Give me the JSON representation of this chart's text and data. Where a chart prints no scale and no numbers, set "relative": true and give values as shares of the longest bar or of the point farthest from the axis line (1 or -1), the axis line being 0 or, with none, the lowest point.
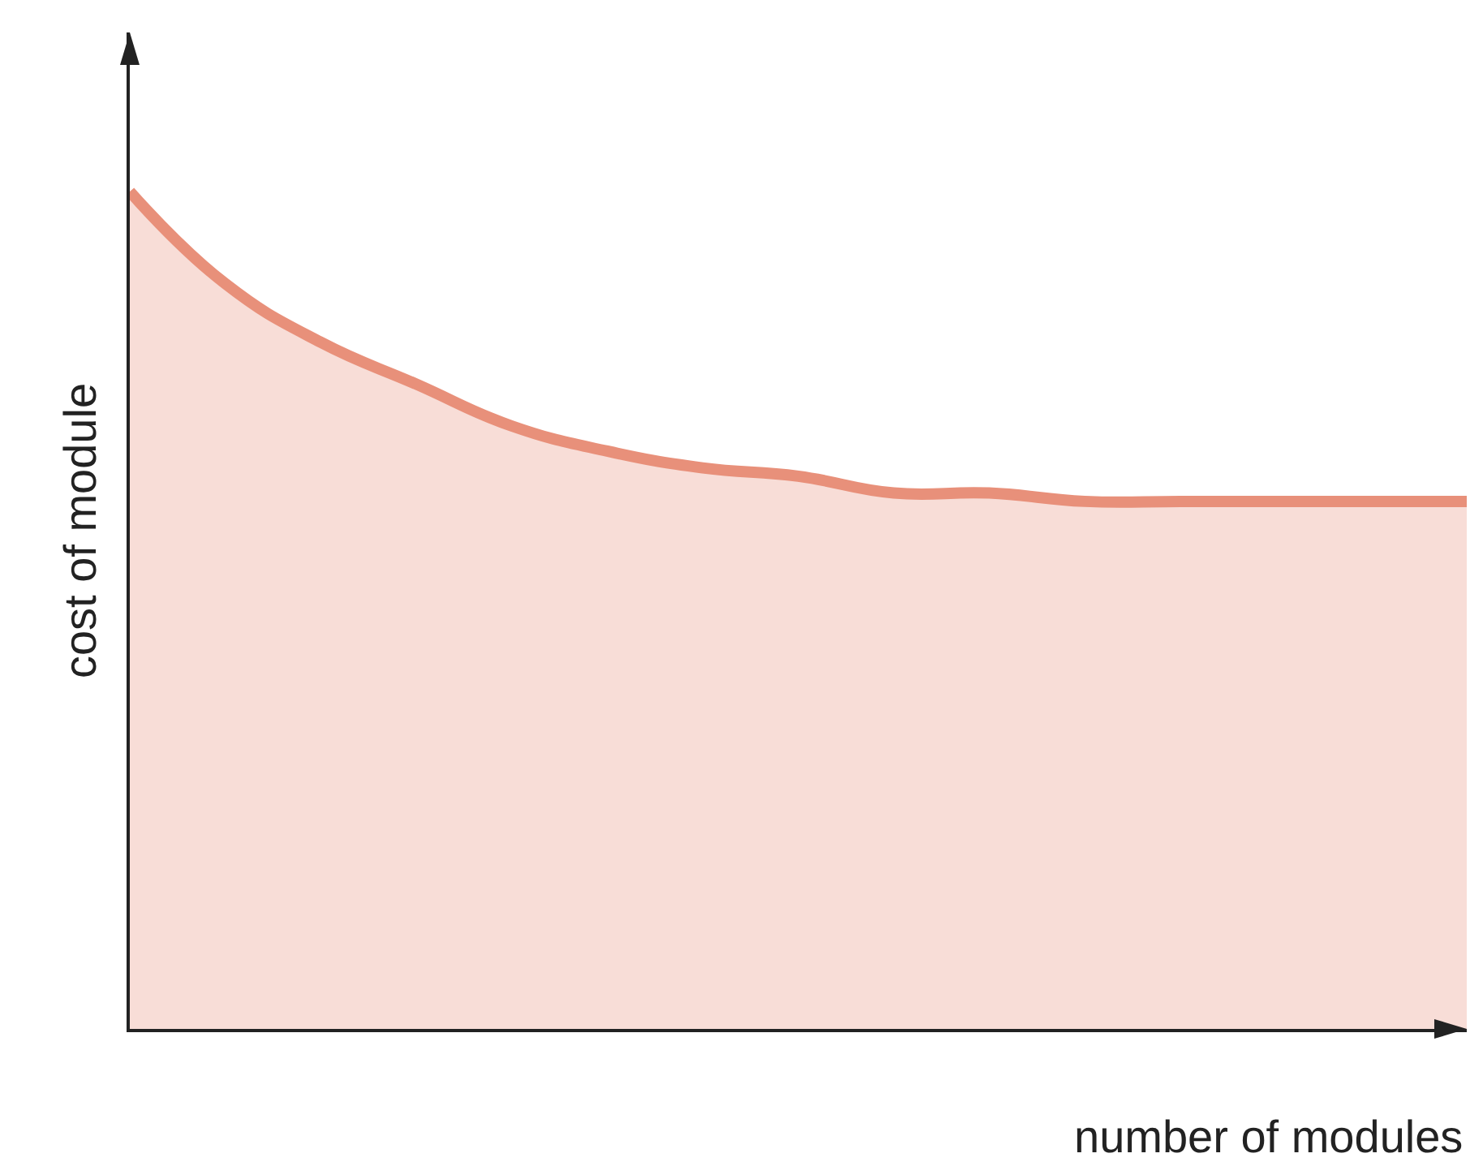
{
  "chart_data": {
    "type": "area",
    "relative": true,
    "xlabel": "number of modules",
    "ylabel": "cost of module",
    "categories": [
      null,
      null,
      null,
      null,
      null,
      null,
      null,
      null,
      null,
      null,
      null,
      null,
      null,
      null,
      null
    ],
    "series": [
      {
        "color": "#e8907a",
        "values": [
          1.0,
          0.89,
          0.82,
          0.77,
          0.72,
          0.69,
          0.67,
          0.66,
          0.64,
          0.64,
          0.63,
          0.63,
          0.63,
          0.63,
          0.63
        ]
      }
    ],
    "legend": false,
    "tick_labels": false,
    "marker": "none",
    "line_style": "solid"
  }
}
